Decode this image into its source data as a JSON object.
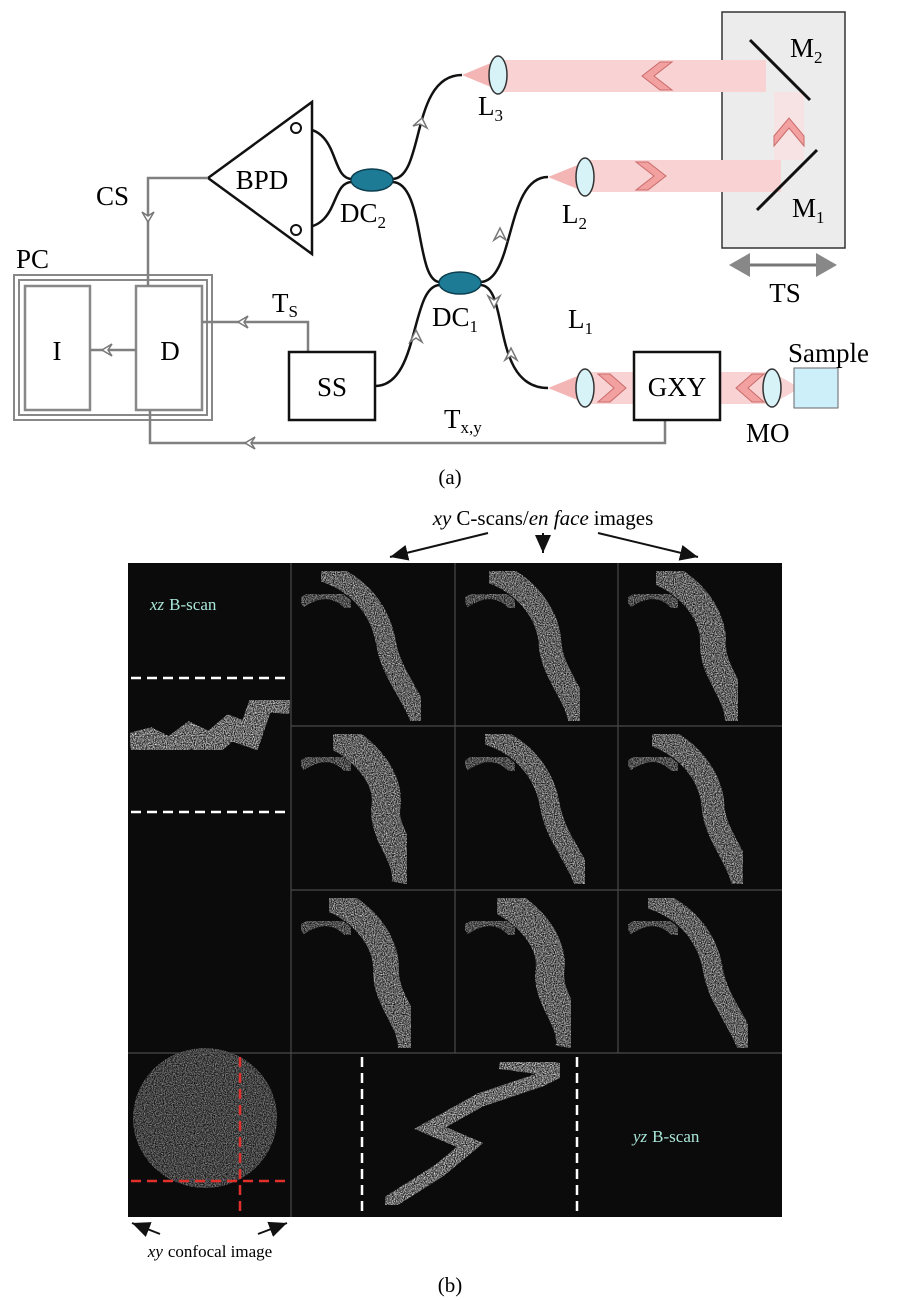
{
  "panel_a": {
    "caption": "(a)",
    "bpd": "BPD",
    "cs": "CS",
    "pc": "PC",
    "i": "I",
    "d": "D",
    "ts_trigger": {
      "text": "T",
      "sub": "S"
    },
    "ss": "SS",
    "dc2": {
      "text": "DC",
      "sub": "2"
    },
    "dc1": {
      "text": "DC",
      "sub": "1"
    },
    "l3": {
      "text": "L",
      "sub": "3"
    },
    "l2": {
      "text": "L",
      "sub": "2"
    },
    "l1": {
      "text": "L",
      "sub": "1"
    },
    "m2": {
      "text": "M",
      "sub": "2"
    },
    "m1": {
      "text": "M",
      "sub": "1"
    },
    "ts": "TS",
    "gxy": "GXY",
    "sample": "Sample",
    "mo": "MO",
    "txy": {
      "text": "T",
      "sub": "x,y"
    }
  },
  "panel_b": {
    "caption": "(b)",
    "header": [
      "xy",
      "C-scans/",
      "en face",
      "images"
    ],
    "xz": [
      "xz",
      "B-scan"
    ],
    "yz": [
      "yz",
      "B-scan"
    ],
    "confocal": [
      "xy",
      "confocal image"
    ]
  }
}
